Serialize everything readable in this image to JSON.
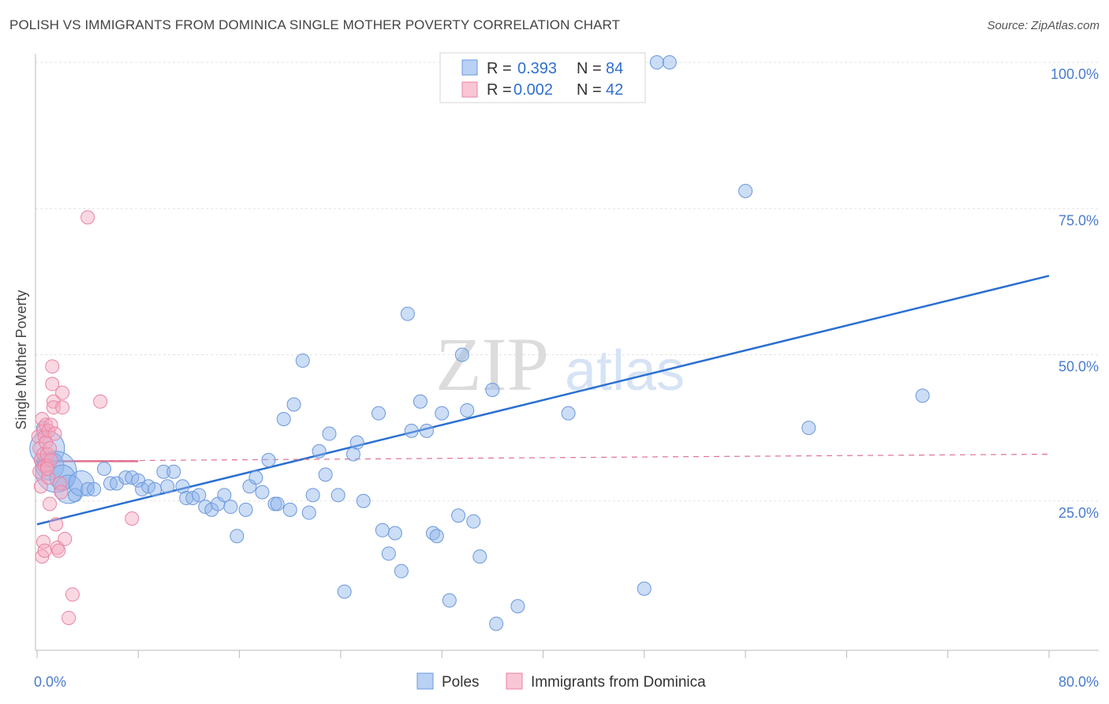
{
  "title": "POLISH VS IMMIGRANTS FROM DOMINICA SINGLE MOTHER POVERTY CORRELATION CHART",
  "source": "Source: ZipAtlas.com",
  "watermark": {
    "zip": "ZIP",
    "atlas": "atlas"
  },
  "colors": {
    "poles": "#8fb4ea",
    "poles_stroke": "#6b98dc",
    "poles_line": "#2a6fd2",
    "dominica": "#f4a9bf",
    "dominica_stroke": "#e884a4",
    "dominica_line": "#e0718f",
    "axis_text": "#4a7bd0",
    "grid": "#e3e3e3"
  },
  "legend": {
    "rows": [
      {
        "r_label": "R =",
        "r_value": "0.393",
        "n_label": "N =",
        "n_value": "84"
      },
      {
        "r_label": "R =",
        "r_value": "0.002",
        "n_label": "N =",
        "n_value": "42"
      }
    ]
  },
  "chart_data": {
    "type": "scatter",
    "title": "POLISH VS IMMIGRANTS FROM DOMINICA SINGLE MOTHER POVERTY CORRELATION CHART",
    "xlabel": "",
    "ylabel": "Single Mother Poverty",
    "xlim": [
      0,
      80
    ],
    "ylim": [
      0,
      100
    ],
    "x_tick_labels": [
      "0.0%",
      "80.0%"
    ],
    "y_tick_labels": [
      "25.0%",
      "50.0%",
      "75.0%",
      "100.0%"
    ],
    "y_ticks": [
      25,
      50,
      75,
      100
    ],
    "x_minor_ticks": [
      0,
      8,
      16,
      24,
      32,
      40,
      48,
      56,
      64,
      72,
      80
    ],
    "grid": true,
    "series": [
      {
        "name": "Poles",
        "r": 0.393,
        "n": 84,
        "trend": {
          "x": [
            0,
            80
          ],
          "y": [
            21.0,
            63.5
          ],
          "style": "solid"
        },
        "points": [
          [
            0.5,
            37.5,
            10
          ],
          [
            0.8,
            34,
            18
          ],
          [
            1.0,
            31,
            14
          ],
          [
            1.5,
            30,
            22
          ],
          [
            2.0,
            29,
            12
          ],
          [
            2.5,
            27,
            14
          ],
          [
            3.0,
            26,
            10
          ],
          [
            3.5,
            28,
            12
          ],
          [
            4.0,
            27,
            10
          ],
          [
            4.5,
            27,
            10
          ],
          [
            5.3,
            30.5,
            10
          ],
          [
            5.8,
            28,
            10
          ],
          [
            6.3,
            28,
            10
          ],
          [
            7.0,
            29,
            10
          ],
          [
            7.5,
            29,
            10
          ],
          [
            8.0,
            28.5,
            10
          ],
          [
            8.3,
            27,
            10
          ],
          [
            8.8,
            27.5,
            10
          ],
          [
            9.3,
            27,
            10
          ],
          [
            10.0,
            30,
            10
          ],
          [
            10.8,
            30,
            10
          ],
          [
            10.3,
            27.5,
            10
          ],
          [
            11.5,
            27.5,
            10
          ],
          [
            11.8,
            25.5,
            10
          ],
          [
            12.3,
            25.5,
            10
          ],
          [
            12.8,
            26,
            10
          ],
          [
            13.3,
            24,
            10
          ],
          [
            13.8,
            23.5,
            10
          ],
          [
            14.3,
            24.5,
            10
          ],
          [
            14.8,
            26,
            10
          ],
          [
            15.3,
            24,
            10
          ],
          [
            15.8,
            19,
            10
          ],
          [
            16.5,
            23.5,
            10
          ],
          [
            16.8,
            27.5,
            10
          ],
          [
            17.3,
            29,
            10
          ],
          [
            17.8,
            26.5,
            10
          ],
          [
            18.3,
            32,
            10
          ],
          [
            18.8,
            24.5,
            10
          ],
          [
            19.0,
            24.5,
            10
          ],
          [
            19.5,
            39,
            10
          ],
          [
            20.0,
            23.5,
            10
          ],
          [
            20.3,
            41.5,
            10
          ],
          [
            21.0,
            49,
            10
          ],
          [
            21.5,
            23,
            10
          ],
          [
            21.8,
            26,
            10
          ],
          [
            22.3,
            33.5,
            10
          ],
          [
            22.8,
            29.5,
            10
          ],
          [
            23.1,
            36.5,
            10
          ],
          [
            23.8,
            26,
            10
          ],
          [
            24.3,
            9.5,
            10
          ],
          [
            25.0,
            33,
            10
          ],
          [
            25.3,
            35,
            10
          ],
          [
            25.8,
            25,
            10
          ],
          [
            27.0,
            40,
            10
          ],
          [
            27.3,
            20,
            10
          ],
          [
            27.8,
            16,
            10
          ],
          [
            28.3,
            19.5,
            10
          ],
          [
            28.8,
            13,
            10
          ],
          [
            29.3,
            57,
            10
          ],
          [
            29.6,
            37,
            10
          ],
          [
            30.3,
            42,
            10
          ],
          [
            30.8,
            37,
            10
          ],
          [
            31.3,
            19.5,
            10
          ],
          [
            31.6,
            19,
            10
          ],
          [
            32.0,
            40,
            10
          ],
          [
            32.6,
            8,
            10
          ],
          [
            33.3,
            22.5,
            10
          ],
          [
            33.6,
            50,
            10
          ],
          [
            34.0,
            40.5,
            10
          ],
          [
            34.5,
            21.5,
            10
          ],
          [
            35.0,
            15.5,
            10
          ],
          [
            36.0,
            44,
            10
          ],
          [
            36.3,
            4,
            10
          ],
          [
            38.0,
            7,
            10
          ],
          [
            42.0,
            40,
            10
          ],
          [
            42.5,
            100,
            10
          ],
          [
            48.0,
            10,
            10
          ],
          [
            49.0,
            100,
            10
          ],
          [
            50.0,
            100,
            10
          ],
          [
            56.0,
            78,
            10
          ],
          [
            61.0,
            37.5,
            10
          ],
          [
            70.0,
            43,
            10
          ]
        ]
      },
      {
        "name": "Immigrants from Dominica",
        "r": 0.002,
        "n": 42,
        "trend": {
          "x": [
            0,
            8
          ],
          "y": [
            31.8,
            31.8
          ],
          "dashed_x": [
            0,
            80
          ],
          "dashed_y": [
            31.8,
            33.0
          ]
        },
        "points": [
          [
            0.1,
            36,
            10
          ],
          [
            0.2,
            34,
            10
          ],
          [
            0.3,
            32,
            10
          ],
          [
            0.2,
            30,
            10
          ],
          [
            0.3,
            27.5,
            10
          ],
          [
            0.4,
            39,
            10
          ],
          [
            0.5,
            37,
            10
          ],
          [
            0.5,
            33,
            10
          ],
          [
            0.6,
            31,
            10
          ],
          [
            0.6,
            36,
            10
          ],
          [
            0.7,
            38,
            10
          ],
          [
            0.7,
            35,
            10
          ],
          [
            0.8,
            33,
            10
          ],
          [
            0.8,
            31,
            10
          ],
          [
            0.9,
            37,
            10
          ],
          [
            0.9,
            29,
            10
          ],
          [
            1.0,
            34,
            10
          ],
          [
            1.0,
            24.5,
            10
          ],
          [
            1.1,
            32,
            10
          ],
          [
            1.1,
            38,
            10
          ],
          [
            1.2,
            45,
            10
          ],
          [
            1.2,
            48,
            10
          ],
          [
            1.3,
            42,
            10
          ],
          [
            1.3,
            41,
            10
          ],
          [
            1.4,
            36.5,
            10
          ],
          [
            1.5,
            21,
            10
          ],
          [
            1.6,
            17,
            10
          ],
          [
            1.7,
            16.5,
            10
          ],
          [
            1.8,
            28,
            10
          ],
          [
            1.9,
            26.5,
            10
          ],
          [
            2.0,
            43.5,
            10
          ],
          [
            2.0,
            41,
            10
          ],
          [
            2.2,
            18.5,
            10
          ],
          [
            2.5,
            5,
            10
          ],
          [
            2.8,
            9,
            10
          ],
          [
            4.0,
            73.5,
            10
          ],
          [
            5.0,
            42,
            10
          ],
          [
            7.5,
            22,
            10
          ],
          [
            0.5,
            18,
            10
          ],
          [
            0.4,
            15.5,
            10
          ],
          [
            0.6,
            16.5,
            10
          ],
          [
            0.8,
            30.5,
            10
          ]
        ]
      }
    ]
  },
  "bottom_legend": {
    "items": [
      "Poles",
      "Immigrants from Dominica"
    ]
  }
}
